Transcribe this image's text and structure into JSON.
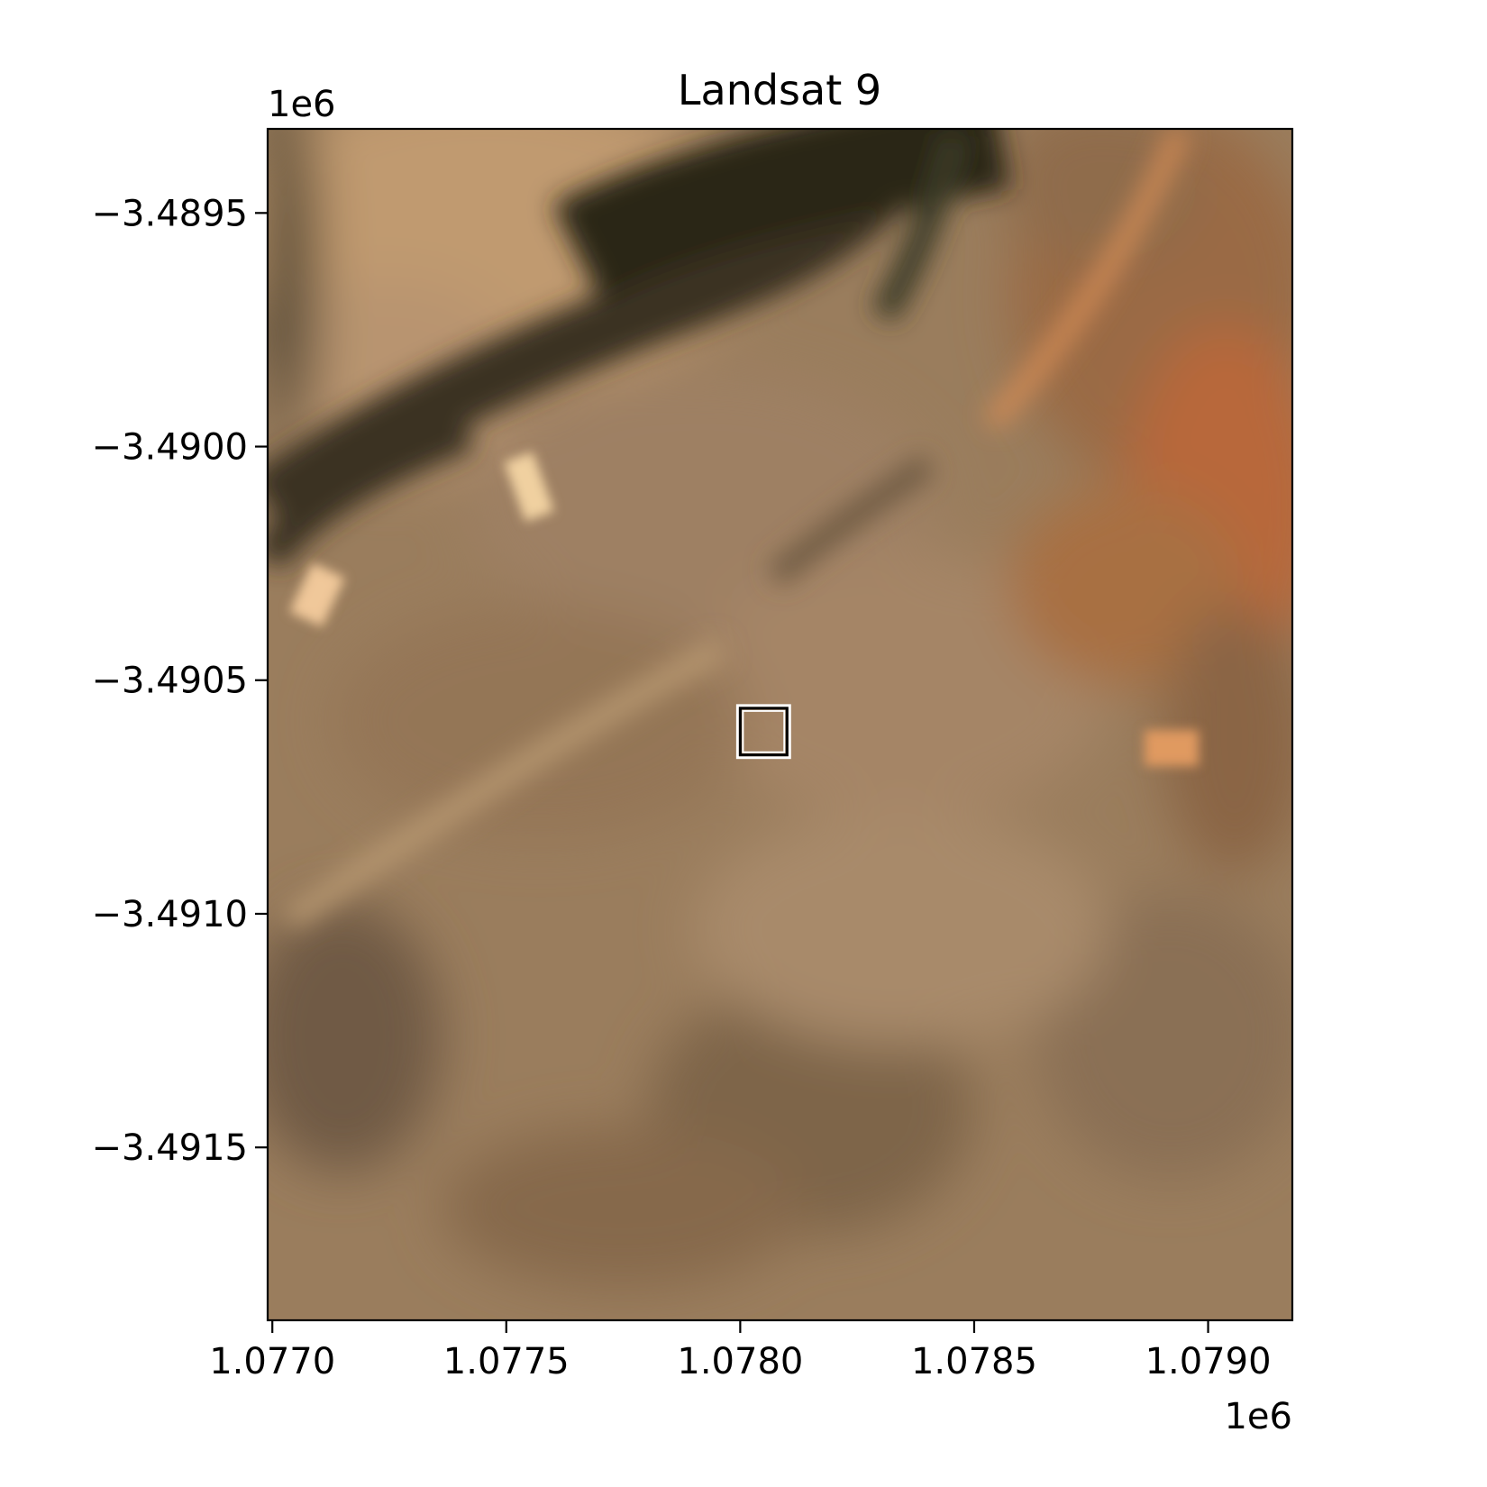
{
  "chart_data": {
    "type": "heatmap",
    "title": "Landsat 9",
    "xlabel": "",
    "ylabel": "",
    "x_offset_label": "1e6",
    "y_offset_label": "1e6",
    "xlim": [
      1.07699,
      1.07918
    ],
    "ylim": [
      -3.49187,
      -3.48932
    ],
    "x_ticks": [
      {
        "value": 1.077,
        "label": "1.0770"
      },
      {
        "value": 1.0775,
        "label": "1.0775"
      },
      {
        "value": 1.078,
        "label": "1.0780"
      },
      {
        "value": 1.0785,
        "label": "1.0785"
      },
      {
        "value": 1.079,
        "label": "1.0790"
      }
    ],
    "y_ticks": [
      {
        "value": -3.4895,
        "label": "−3.4895"
      },
      {
        "value": -3.49,
        "label": "−3.4900"
      },
      {
        "value": -3.4905,
        "label": "−3.4905"
      },
      {
        "value": -3.491,
        "label": "−3.4910"
      },
      {
        "value": -3.4915,
        "label": "−3.4915"
      }
    ],
    "image": "true-color satellite scene (tan/brown semi-arid terrain, dark road band top-left, orange vegetation/soil patch right)",
    "colors": {
      "base": "#9a7d5d",
      "light": "#c09a70",
      "dark_road": "#3a3221",
      "orange": "#c8703a",
      "bright": "#f0d0a0"
    },
    "marker": {
      "type": "square",
      "x_center": 1.07805,
      "y_center": -3.49061,
      "size": 0.0001,
      "color": "#000000",
      "outline": "#ffffff"
    },
    "grid": false
  }
}
